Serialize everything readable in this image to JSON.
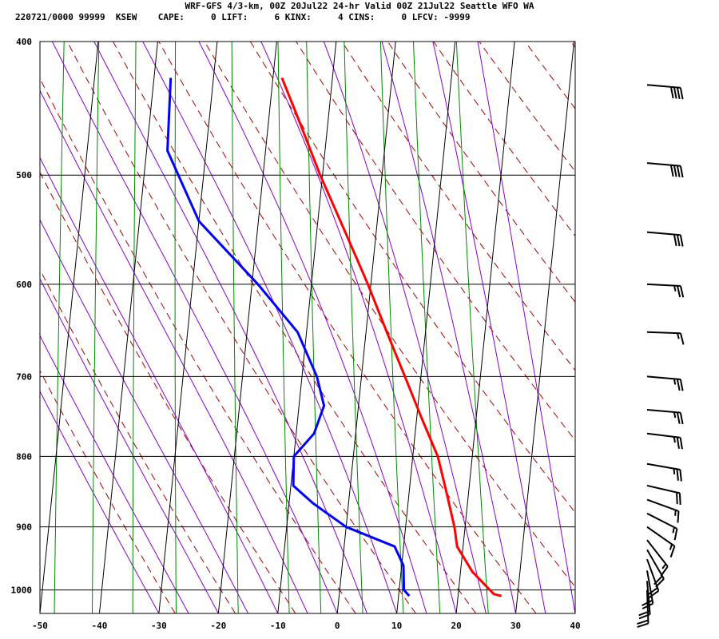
{
  "header": {
    "title": "WRF-GFS 4/3-km, 00Z 20Jul22 24-hr Valid 00Z 21Jul22 Seattle WFO WA",
    "info": "220721/0000 99999  KSEW    CAPE:     0 LIFT:     6 KINX:     4 CINS:     0 LFCV: -9999"
  },
  "colors": {
    "temperature": "#ff0000",
    "dewpoint": "#0000ff",
    "dry_adiabat": "#aa0000",
    "moist_adiabat": "#8800cc",
    "mixing_ratio": "#008800",
    "grid": "#000000"
  },
  "chart_data": {
    "type": "line",
    "title": "",
    "xlabel": "",
    "ylabel": "",
    "x_axis": {
      "unit": "deg C",
      "range": [
        -50,
        40
      ],
      "ticks": [
        -50,
        -40,
        -30,
        -20,
        -10,
        0,
        10,
        20,
        30,
        40
      ]
    },
    "y_axis": {
      "unit": "hPa",
      "scale": "log",
      "range": [
        1040,
        400
      ],
      "ticks": [
        400,
        500,
        600,
        700,
        800,
        900,
        1000
      ]
    },
    "skew": true,
    "grid": true,
    "series": [
      {
        "key": "temperature",
        "color": "#ff0000",
        "points": [
          {
            "p": 1010,
            "t": 27.3
          },
          {
            "p": 1007,
            "t": 26
          },
          {
            "p": 970,
            "t": 22
          },
          {
            "p": 930,
            "t": 19
          },
          {
            "p": 900,
            "t": 18.2
          },
          {
            "p": 850,
            "t": 16.3
          },
          {
            "p": 800,
            "t": 14.2
          },
          {
            "p": 750,
            "t": 10.8
          },
          {
            "p": 700,
            "t": 7.3
          },
          {
            "p": 650,
            "t": 3.5
          },
          {
            "p": 600,
            "t": -0.5
          },
          {
            "p": 550,
            "t": -5.2
          },
          {
            "p": 500,
            "t": -10.4
          },
          {
            "p": 450,
            "t": -15.6
          },
          {
            "p": 425,
            "t": -18.5
          }
        ]
      },
      {
        "key": "dewpoint",
        "color": "#0000ff",
        "points": [
          {
            "p": 1010,
            "t": 11.8
          },
          {
            "p": 1000,
            "t": 10.8
          },
          {
            "p": 960,
            "t": 10.3
          },
          {
            "p": 930,
            "t": 8.5
          },
          {
            "p": 900,
            "t": 0
          },
          {
            "p": 865,
            "t": -6
          },
          {
            "p": 840,
            "t": -9.6
          },
          {
            "p": 800,
            "t": -10
          },
          {
            "p": 770,
            "t": -7
          },
          {
            "p": 735,
            "t": -5.8
          },
          {
            "p": 700,
            "t": -7.5
          },
          {
            "p": 650,
            "t": -11.5
          },
          {
            "p": 600,
            "t": -19
          },
          {
            "p": 540,
            "t": -30
          },
          {
            "p": 480,
            "t": -36.5
          },
          {
            "p": 425,
            "t": -37.2
          }
        ]
      }
    ],
    "wind_barbs": [
      {
        "p": 1000,
        "dir": 358,
        "kt": 20
      },
      {
        "p": 985,
        "dir": 355,
        "kt": 20
      },
      {
        "p": 968,
        "dir": 350,
        "kt": 20
      },
      {
        "p": 950,
        "dir": 340,
        "kt": 20
      },
      {
        "p": 935,
        "dir": 330,
        "kt": 20
      },
      {
        "p": 920,
        "dir": 322,
        "kt": 15
      },
      {
        "p": 900,
        "dir": 305,
        "kt": 15
      },
      {
        "p": 880,
        "dir": 297,
        "kt": 15
      },
      {
        "p": 860,
        "dir": 290,
        "kt": 15
      },
      {
        "p": 840,
        "dir": 283,
        "kt": 20
      },
      {
        "p": 810,
        "dir": 280,
        "kt": 25
      },
      {
        "p": 770,
        "dir": 277,
        "kt": 25
      },
      {
        "p": 740,
        "dir": 275,
        "kt": 25
      },
      {
        "p": 700,
        "dir": 275,
        "kt": 25
      },
      {
        "p": 650,
        "dir": 272,
        "kt": 15
      },
      {
        "p": 600,
        "dir": 273,
        "kt": 25
      },
      {
        "p": 550,
        "dir": 275,
        "kt": 30
      },
      {
        "p": 490,
        "dir": 275,
        "kt": 40
      },
      {
        "p": 430,
        "dir": 275,
        "kt": 40
      }
    ]
  }
}
